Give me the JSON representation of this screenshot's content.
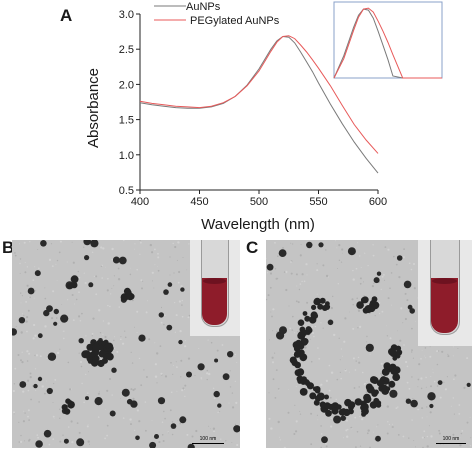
{
  "figure": {
    "panel_a_label": "A",
    "panel_b_label": "B",
    "panel_c_label": "C",
    "scale_bar_b": "100 nm",
    "scale_bar_c": "100 nm"
  },
  "colors": {
    "aunps": "#7a7a7a",
    "pegylated": "#e85a5a",
    "inset_border": "#8aa0c8",
    "tem_background": "#c4c4c4",
    "solution": "#8e1c2a"
  },
  "chart_data": {
    "type": "line",
    "xlabel": "Wavelength (nm)",
    "ylabel": "Absorbance",
    "xlim": [
      400,
      600
    ],
    "ylim": [
      0.5,
      3.0
    ],
    "x_ticks": [
      "400",
      "450",
      "500",
      "550",
      "600"
    ],
    "y_ticks": [
      "0.5",
      "1.0",
      "1.5",
      "2.0",
      "2.5",
      "3.0"
    ],
    "legend_position": "top-center",
    "series": [
      {
        "name": "AuNPs",
        "color": "#7a7a7a",
        "x": [
          400,
          410,
          420,
          430,
          440,
          450,
          460,
          470,
          480,
          490,
          500,
          505,
          510,
          515,
          520,
          525,
          530,
          535,
          540,
          545,
          550,
          560,
          570,
          580,
          590,
          600
        ],
        "y": [
          1.74,
          1.71,
          1.69,
          1.67,
          1.66,
          1.66,
          1.68,
          1.73,
          1.83,
          1.99,
          2.22,
          2.36,
          2.5,
          2.62,
          2.68,
          2.67,
          2.59,
          2.46,
          2.32,
          2.18,
          2.02,
          1.72,
          1.44,
          1.18,
          0.95,
          0.74
        ]
      },
      {
        "name": "PEGylated AuNPs",
        "color": "#e85a5a",
        "x": [
          400,
          410,
          420,
          430,
          440,
          450,
          460,
          470,
          480,
          490,
          500,
          505,
          510,
          515,
          520,
          525,
          530,
          535,
          540,
          545,
          550,
          560,
          570,
          580,
          590,
          600
        ],
        "y": [
          1.76,
          1.73,
          1.71,
          1.69,
          1.68,
          1.67,
          1.69,
          1.74,
          1.83,
          1.98,
          2.19,
          2.33,
          2.47,
          2.6,
          2.68,
          2.69,
          2.65,
          2.56,
          2.46,
          2.35,
          2.23,
          1.98,
          1.7,
          1.43,
          1.21,
          1.02
        ]
      }
    ],
    "inset": {
      "description_visible": false,
      "series_colors": [
        "#7a7a7a",
        "#e85a5a"
      ]
    }
  }
}
